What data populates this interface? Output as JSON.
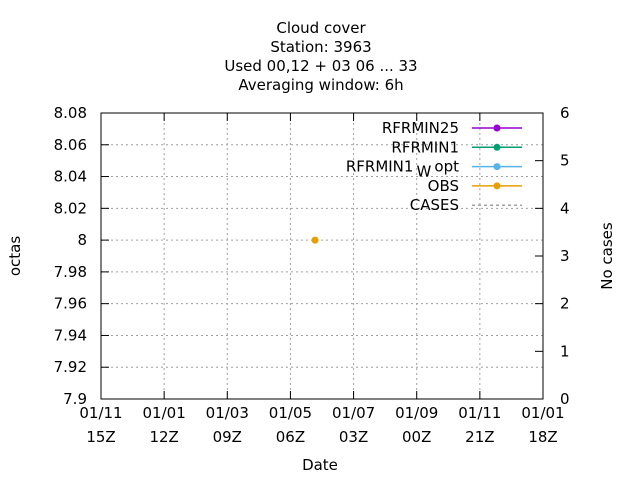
{
  "chart_data": {
    "type": "line",
    "title_lines": [
      "Cloud cover",
      "Station:     3963",
      "Used  00,12  + 03 06 ... 33",
      "Averaging window:  6h"
    ],
    "xlabel": "Date",
    "ylabel": "octas",
    "y2label": "No cases",
    "ylim": [
      7.9,
      8.08
    ],
    "y2lim": [
      0,
      6
    ],
    "yticks": [
      "7.9",
      "7.92",
      "7.94",
      "7.96",
      "7.98",
      "8",
      "8.02",
      "8.04",
      "8.06",
      "8.08"
    ],
    "y2ticks": [
      "0",
      "1",
      "2",
      "3",
      "4",
      "5",
      "6"
    ],
    "xticks": [
      {
        "top": "01/11",
        "bottom": "15Z"
      },
      {
        "top": "01/01",
        "bottom": "12Z"
      },
      {
        "top": "01/03",
        "bottom": "09Z"
      },
      {
        "top": "01/05",
        "bottom": "06Z"
      },
      {
        "top": "01/07",
        "bottom": "03Z"
      },
      {
        "top": "01/09",
        "bottom": "00Z"
      },
      {
        "top": "01/11",
        "bottom": "21Z"
      },
      {
        "top": "01/01",
        "bottom": "18Z"
      }
    ],
    "grid": true,
    "legend_position": "top-right",
    "series": [
      {
        "name": "RFRMIN25",
        "color": "#9400d3",
        "style": "line-points",
        "points": []
      },
      {
        "name": "RFRMIN1",
        "color": "#009e73",
        "style": "line-points",
        "points": []
      },
      {
        "name": "RFRMIN1",
        "name_subscript": "W",
        "name_suffix": "opt",
        "color": "#56b4e9",
        "style": "line-points",
        "points": []
      },
      {
        "name": "OBS",
        "color": "#e69f00",
        "style": "line-points",
        "points": [
          {
            "x_index": 3.39,
            "y": 8.0
          }
        ]
      },
      {
        "name": "CASES",
        "color": "#a0a0a0",
        "style": "dashed",
        "axis": "y2",
        "points": []
      }
    ]
  }
}
